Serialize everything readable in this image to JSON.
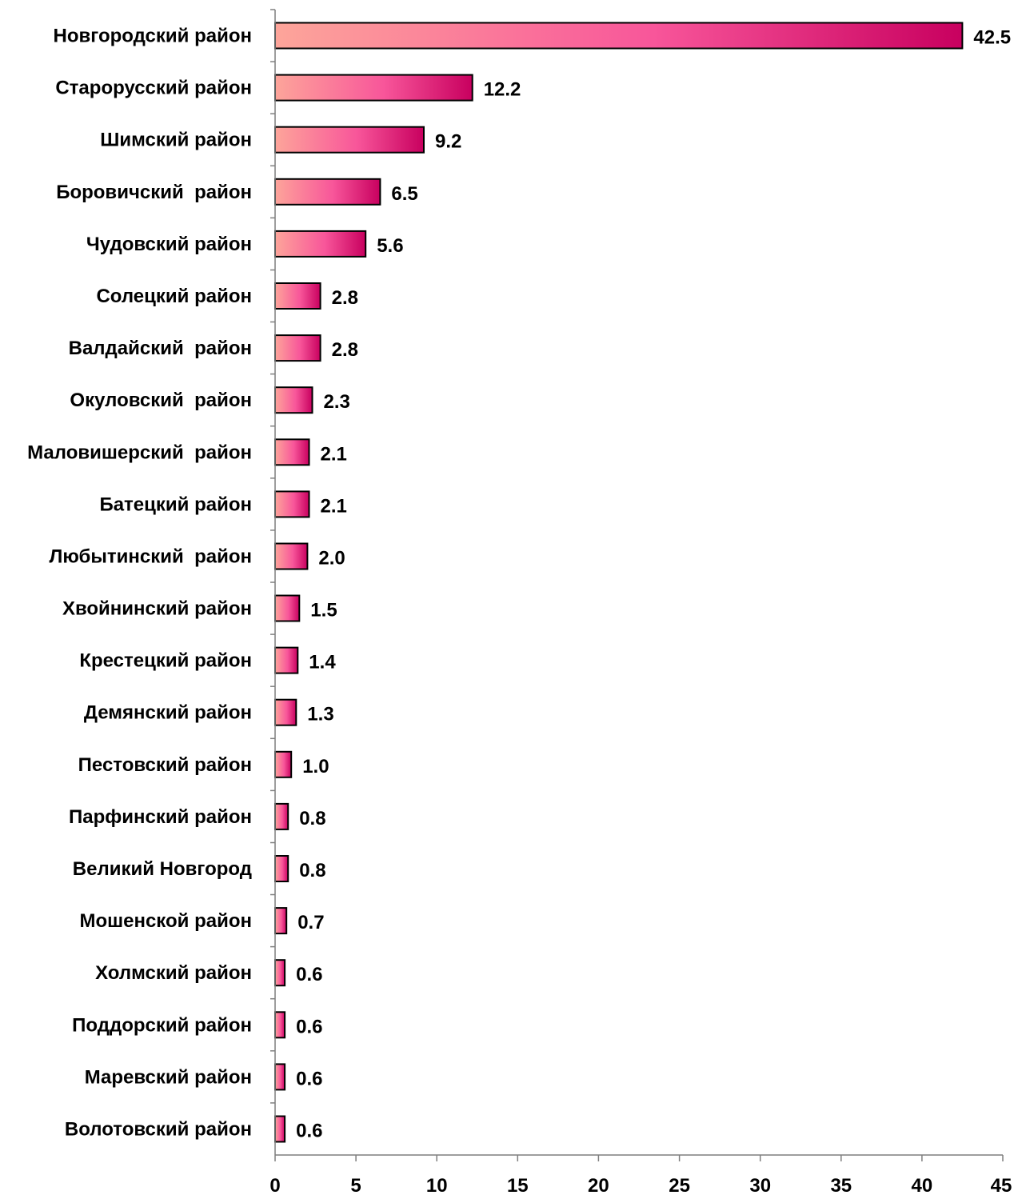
{
  "chart_data": {
    "type": "bar",
    "orientation": "horizontal",
    "title": "",
    "xlabel": "",
    "ylabel": "",
    "xlim": [
      0,
      45
    ],
    "xticks": [
      0,
      5,
      10,
      15,
      20,
      25,
      30,
      35,
      40,
      45
    ],
    "grid": false,
    "legend": "none",
    "categories": [
      "Новгородский район",
      "Старорусский район",
      "Шимский район",
      "Боровичский  район",
      "Чудовский район",
      "Солецкий район",
      "Валдайский  район",
      "Окуловский  район",
      "Маловишерский  район",
      "Батецкий район",
      "Любытинский  район",
      "Хвойнинский район",
      "Крестецкий район",
      "Демянский район",
      "Пестовский район",
      "Парфинский район",
      "Великий Новгород",
      "Мошенской район",
      "Холмский район",
      "Поддорский район",
      "Маревский район",
      "Волотовский район"
    ],
    "values": [
      42.5,
      12.2,
      9.2,
      6.5,
      5.6,
      2.8,
      2.8,
      2.3,
      2.1,
      2.1,
      2.0,
      1.5,
      1.4,
      1.3,
      1.0,
      0.8,
      0.8,
      0.7,
      0.6,
      0.6,
      0.6,
      0.6
    ],
    "value_labels": [
      "42.5",
      "12.2",
      "9.2",
      "6.5",
      "5.6",
      "2.8",
      "2.8",
      "2.3",
      "2.1",
      "2.1",
      "2.0",
      "1.5",
      "1.4",
      "1.3",
      "1.0",
      "0.8",
      "0.8",
      "0.7",
      "0.6",
      "0.6",
      "0.6",
      "0.6"
    ],
    "colors": {
      "gradient_start": "#fda59a",
      "gradient_mid": "#f8569a",
      "gradient_end": "#c8005f",
      "bar_outline": "#000000",
      "axis": "#7f7f7f"
    }
  }
}
